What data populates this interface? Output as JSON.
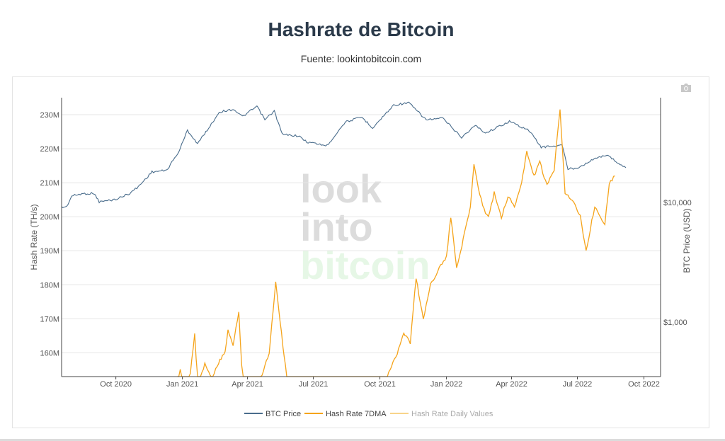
{
  "header": {
    "title": "Hashrate de Bitcoin",
    "subtitle": "Fuente: lookintobitcoin.com"
  },
  "watermark": {
    "line1": "look",
    "line2": "into",
    "line3": "bitcoin"
  },
  "toolbar": {
    "camera_icon": "camera-icon"
  },
  "colors": {
    "btc_price": "#4a6d8c",
    "hash_7dma": "#f5a41b",
    "hash_daily": "#f8d48a",
    "grid": "#e6e6e6",
    "text": "#555555"
  },
  "chart_data": {
    "type": "line",
    "title": "Hashrate de Bitcoin",
    "subtitle": "Fuente: lookintobitcoin.com",
    "ylabel": "Hash Rate (TH/s)",
    "y2label": "BTC Price (USD)",
    "ylim": [
      153000000,
      235000000
    ],
    "y_ticks": [
      160000000,
      170000000,
      180000000,
      190000000,
      200000000,
      210000000,
      220000000,
      230000000
    ],
    "y_tick_labels": [
      "160M",
      "170M",
      "180M",
      "190M",
      "200M",
      "210M",
      "220M",
      "230M"
    ],
    "y2_scale": "log",
    "y2_ticks": [
      1000,
      10000
    ],
    "y2_tick_labels": [
      "$1,000",
      "$10,000"
    ],
    "xlim": [
      "2020-07-18",
      "2022-10-24"
    ],
    "x_ticks": [
      "2020-10-01",
      "2021-01-01",
      "2021-04-01",
      "2021-07-01",
      "2021-10-01",
      "2022-01-01",
      "2022-04-01",
      "2022-07-01",
      "2022-10-01"
    ],
    "x_tick_labels": [
      "Oct 2020",
      "Jan 2021",
      "Apr 2021",
      "Jul 2021",
      "Oct 2021",
      "Jan 2022",
      "Apr 2022",
      "Jul 2022",
      "Oct 2022"
    ],
    "legend_position": "bottom-center",
    "grid": true,
    "series": [
      {
        "name": "BTC Price",
        "axis": "y2",
        "points": [
          [
            "2020-07-18",
            9100
          ],
          [
            "2020-07-25",
            9200
          ],
          [
            "2020-08-01",
            11300
          ],
          [
            "2020-08-15",
            11800
          ],
          [
            "2020-09-01",
            11900
          ],
          [
            "2020-09-08",
            10100
          ],
          [
            "2020-10-01",
            10600
          ],
          [
            "2020-10-20",
            11900
          ],
          [
            "2020-11-01",
            13500
          ],
          [
            "2020-11-20",
            18000
          ],
          [
            "2020-12-10",
            18500
          ],
          [
            "2020-12-27",
            26500
          ],
          [
            "2021-01-08",
            40000
          ],
          [
            "2021-01-22",
            31000
          ],
          [
            "2021-02-10",
            45000
          ],
          [
            "2021-02-21",
            57000
          ],
          [
            "2021-03-13",
            60000
          ],
          [
            "2021-03-25",
            52000
          ],
          [
            "2021-04-14",
            63500
          ],
          [
            "2021-04-25",
            49000
          ],
          [
            "2021-05-08",
            58000
          ],
          [
            "2021-05-19",
            37000
          ],
          [
            "2021-06-10",
            36000
          ],
          [
            "2021-06-22",
            32000
          ],
          [
            "2021-07-20",
            29800
          ],
          [
            "2021-08-14",
            47000
          ],
          [
            "2021-09-06",
            51500
          ],
          [
            "2021-09-21",
            42000
          ],
          [
            "2021-10-20",
            65000
          ],
          [
            "2021-11-10",
            68000
          ],
          [
            "2021-12-04",
            49000
          ],
          [
            "2021-12-27",
            50500
          ],
          [
            "2022-01-22",
            35000
          ],
          [
            "2022-02-10",
            44000
          ],
          [
            "2022-02-24",
            38000
          ],
          [
            "2022-03-29",
            47500
          ],
          [
            "2022-04-25",
            40000
          ],
          [
            "2022-05-12",
            29000
          ],
          [
            "2022-06-10",
            30000
          ],
          [
            "2022-06-18",
            19000
          ],
          [
            "2022-07-01",
            19500
          ],
          [
            "2022-07-30",
            24000
          ],
          [
            "2022-08-14",
            24500
          ],
          [
            "2022-08-25",
            21500
          ],
          [
            "2022-09-06",
            19500
          ]
        ]
      },
      {
        "name": "Hash Rate 7DMA",
        "axis": "y",
        "points": [
          [
            "2020-12-25",
            150000000
          ],
          [
            "2020-12-29",
            155000000
          ],
          [
            "2020-12-31",
            148000000
          ],
          [
            "2021-01-10",
            150000000
          ],
          [
            "2021-01-18",
            166000000
          ],
          [
            "2021-01-22",
            150000000
          ],
          [
            "2021-02-01",
            157000000
          ],
          [
            "2021-02-10",
            152000000
          ],
          [
            "2021-02-20",
            157000000
          ],
          [
            "2021-03-01",
            160000000
          ],
          [
            "2021-03-05",
            167000000
          ],
          [
            "2021-03-12",
            162000000
          ],
          [
            "2021-03-20",
            172000000
          ],
          [
            "2021-03-26",
            148000000
          ],
          [
            "2021-04-15",
            150000000
          ],
          [
            "2021-05-01",
            160000000
          ],
          [
            "2021-05-10",
            181000000
          ],
          [
            "2021-05-20",
            162000000
          ],
          [
            "2021-05-27",
            150000000
          ],
          [
            "2021-10-06",
            150000000
          ],
          [
            "2021-10-15",
            155000000
          ],
          [
            "2021-10-25",
            160000000
          ],
          [
            "2021-11-03",
            166000000
          ],
          [
            "2021-11-12",
            163000000
          ],
          [
            "2021-11-20",
            182000000
          ],
          [
            "2021-11-30",
            170000000
          ],
          [
            "2021-12-10",
            180000000
          ],
          [
            "2021-12-22",
            185000000
          ],
          [
            "2022-01-01",
            188000000
          ],
          [
            "2022-01-07",
            200000000
          ],
          [
            "2022-01-15",
            185000000
          ],
          [
            "2022-01-26",
            195000000
          ],
          [
            "2022-02-03",
            203000000
          ],
          [
            "2022-02-08",
            215000000
          ],
          [
            "2022-02-20",
            203000000
          ],
          [
            "2022-02-28",
            200000000
          ],
          [
            "2022-03-08",
            207000000
          ],
          [
            "2022-03-18",
            200000000
          ],
          [
            "2022-03-27",
            206000000
          ],
          [
            "2022-04-05",
            203000000
          ],
          [
            "2022-04-15",
            210000000
          ],
          [
            "2022-04-22",
            219000000
          ],
          [
            "2022-05-02",
            212000000
          ],
          [
            "2022-05-10",
            216000000
          ],
          [
            "2022-05-20",
            209000000
          ],
          [
            "2022-05-30",
            214000000
          ],
          [
            "2022-06-07",
            232000000
          ],
          [
            "2022-06-14",
            207000000
          ],
          [
            "2022-06-24",
            205000000
          ],
          [
            "2022-07-05",
            200000000
          ],
          [
            "2022-07-13",
            190000000
          ],
          [
            "2022-07-25",
            203000000
          ],
          [
            "2022-08-08",
            198000000
          ],
          [
            "2022-08-14",
            210000000
          ],
          [
            "2022-08-22",
            212000000
          ]
        ]
      },
      {
        "name": "Hash Rate Daily Values",
        "axis": "y",
        "points": []
      }
    ]
  }
}
